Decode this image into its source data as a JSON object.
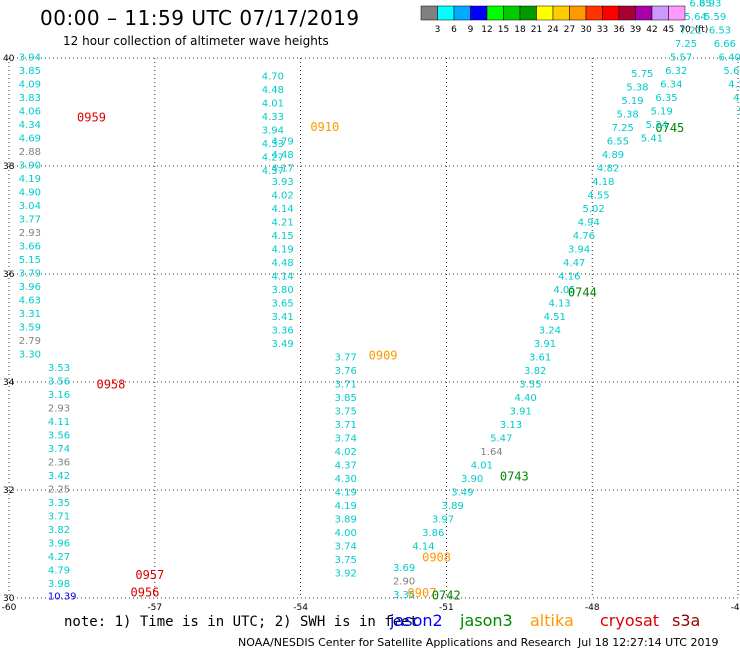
{
  "header": {
    "title": "00:00 – 11:59 UTC 07/17/2019",
    "subtitle": "12 hour collection of altimeter wave heights"
  },
  "legend_scale": {
    "labels": [
      "3",
      "6",
      "9",
      "12",
      "15",
      "18",
      "21",
      "24",
      "27",
      "30",
      "33",
      "36",
      "39",
      "42",
      "45",
      "70",
      "(ft)"
    ],
    "colors": [
      "#808080",
      "#00ffff",
      "#00aaff",
      "#0000ff",
      "#00ff00",
      "#00cc00",
      "#009900",
      "#ffff00",
      "#ffcc00",
      "#ff9900",
      "#ff3300",
      "#ff0000",
      "#aa0033",
      "#aa00aa",
      "#cc99ff",
      "#ff99ff"
    ]
  },
  "footer": {
    "note": "note: 1) Time is in UTC; 2) SWH is in feet",
    "credit": "NOAA/NESDIS Center for Satellite Applications and Research",
    "timestamp": "Jul 18 12:27:14 UTC 2019"
  },
  "satellites": [
    {
      "name": "jason2",
      "color": "#0000ff"
    },
    {
      "name": "jason3",
      "color": "#008800"
    },
    {
      "name": "altika",
      "color": "#ff9900"
    },
    {
      "name": "cryosat",
      "color": "#dd0000"
    },
    {
      "name": "s3a",
      "color": "#990000"
    }
  ],
  "chart_data": {
    "type": "scatter",
    "xlim": [
      -60,
      -45
    ],
    "ylim": [
      30,
      40
    ],
    "xticks": [
      "-60",
      "-57",
      "-54",
      "-51",
      "-48",
      "-45"
    ],
    "yticks": [
      "30",
      "32",
      "34",
      "36",
      "38",
      "40"
    ],
    "grid": true,
    "tracks": [
      {
        "satellite": "cryosat",
        "time": "0959",
        "label_at": [
          -58.6,
          38.82
        ],
        "points": [
          {
            "lon": -59.8,
            "lat": 38.2,
            "v": "2.88",
            "c": "#808080"
          },
          {
            "lon": -59.8,
            "lat": 37.95,
            "v": "3.90"
          },
          {
            "lon": -59.8,
            "lat": 37.7,
            "v": "4.19"
          },
          {
            "lon": -59.8,
            "lat": 37.45,
            "v": "4.90"
          },
          {
            "lon": -59.8,
            "lat": 37.2,
            "v": "3.04"
          },
          {
            "lon": -59.8,
            "lat": 36.95,
            "v": "3.77"
          },
          {
            "lon": -59.8,
            "lat": 36.7,
            "v": "2.93",
            "c": "#808080"
          },
          {
            "lon": -59.8,
            "lat": 36.45,
            "v": "3.66"
          },
          {
            "lon": -59.8,
            "lat": 36.2,
            "v": "5.15"
          },
          {
            "lon": -59.8,
            "lat": 35.95,
            "v": "3.79"
          },
          {
            "lon": -59.8,
            "lat": 35.7,
            "v": "3.96"
          },
          {
            "lon": -59.8,
            "lat": 35.45,
            "v": "4.63"
          },
          {
            "lon": -59.8,
            "lat": 35.2,
            "v": "3.31"
          },
          {
            "lon": -59.8,
            "lat": 34.95,
            "v": "3.59"
          },
          {
            "lon": -59.8,
            "lat": 34.7,
            "v": "2.79",
            "c": "#808080"
          },
          {
            "lon": -59.8,
            "lat": 34.45,
            "v": "3.30"
          }
        ]
      },
      {
        "satellite": "cryosat",
        "time": "0958",
        "label_at": [
          -58.2,
          33.88
        ],
        "points": [
          {
            "lon": -59.2,
            "lat": 34.2,
            "v": "3.53"
          },
          {
            "lon": -59.2,
            "lat": 33.95,
            "v": "3.56"
          },
          {
            "lon": -59.2,
            "lat": 33.7,
            "v": "3.16"
          },
          {
            "lon": -59.2,
            "lat": 33.45,
            "v": "2.93",
            "c": "#808080"
          },
          {
            "lon": -59.2,
            "lat": 33.2,
            "v": "4.11"
          },
          {
            "lon": -59.2,
            "lat": 32.95,
            "v": "3.56"
          },
          {
            "lon": -59.2,
            "lat": 32.7,
            "v": "3.74"
          },
          {
            "lon": -59.2,
            "lat": 32.45,
            "v": "2.36",
            "c": "#808080"
          },
          {
            "lon": -59.2,
            "lat": 32.2,
            "v": "3.42"
          },
          {
            "lon": -59.2,
            "lat": 31.95,
            "v": "2.25",
            "c": "#808080"
          },
          {
            "lon": -59.2,
            "lat": 31.7,
            "v": "3.35"
          },
          {
            "lon": -59.2,
            "lat": 31.45,
            "v": "3.71"
          },
          {
            "lon": -59.2,
            "lat": 31.2,
            "v": "3.82"
          },
          {
            "lon": -59.2,
            "lat": 30.95,
            "v": "3.96"
          },
          {
            "lon": -59.2,
            "lat": 30.7,
            "v": "4.27"
          },
          {
            "lon": -59.2,
            "lat": 30.45,
            "v": "4.79"
          }
        ]
      },
      {
        "satellite": "cryosat",
        "time": "0957",
        "label_at": [
          -57.4,
          30.35
        ],
        "points": [
          {
            "lon": -59.2,
            "lat": 30.2,
            "v": "3.98"
          }
        ]
      },
      {
        "satellite": "cryosat",
        "time": "0956",
        "label_at": [
          -57.5,
          30.03
        ],
        "points": [
          {
            "lon": -59.2,
            "lat": 29.97,
            "v": "10.39",
            "c": "#0000ff"
          }
        ]
      },
      {
        "satellite": "altika",
        "time": "0910",
        "label_at": [
          -53.8,
          38.65
        ],
        "points": [
          {
            "lon": -54.8,
            "lat": 39.6,
            "v": "4.70"
          },
          {
            "lon": -54.8,
            "lat": 39.35,
            "v": "4.48"
          },
          {
            "lon": -54.8,
            "lat": 39.1,
            "v": "4.01"
          },
          {
            "lon": -54.8,
            "lat": 38.85,
            "v": "4.33"
          },
          {
            "lon": -54.8,
            "lat": 38.6,
            "v": "3.94"
          },
          {
            "lon": -54.8,
            "lat": 38.35,
            "v": "4.33"
          },
          {
            "lon": -54.8,
            "lat": 38.1,
            "v": "4.27"
          },
          {
            "lon": -54.8,
            "lat": 37.85,
            "v": "4.37"
          }
        ]
      },
      {
        "satellite": "altika",
        "time": "0909",
        "label_at": [
          -52.6,
          34.42
        ],
        "points": [
          {
            "lon": -54.6,
            "lat": 38.4,
            "v": "4.79"
          },
          {
            "lon": -54.6,
            "lat": 38.15,
            "v": "4.48"
          },
          {
            "lon": -54.6,
            "lat": 37.9,
            "v": "4.17"
          },
          {
            "lon": -54.6,
            "lat": 37.65,
            "v": "3.93"
          },
          {
            "lon": -54.6,
            "lat": 37.4,
            "v": "4.02"
          },
          {
            "lon": -54.6,
            "lat": 37.15,
            "v": "4.14"
          },
          {
            "lon": -54.6,
            "lat": 36.9,
            "v": "4.21"
          },
          {
            "lon": -54.6,
            "lat": 36.65,
            "v": "4.15"
          },
          {
            "lon": -54.6,
            "lat": 36.4,
            "v": "4.19"
          },
          {
            "lon": -54.6,
            "lat": 36.15,
            "v": "4.48"
          },
          {
            "lon": -54.6,
            "lat": 35.9,
            "v": "4.14"
          },
          {
            "lon": -54.6,
            "lat": 35.65,
            "v": "3.80"
          },
          {
            "lon": -54.6,
            "lat": 35.4,
            "v": "3.65"
          },
          {
            "lon": -54.6,
            "lat": 35.15,
            "v": "3.41"
          },
          {
            "lon": -54.6,
            "lat": 34.9,
            "v": "3.36"
          },
          {
            "lon": -54.6,
            "lat": 34.65,
            "v": "3.49"
          }
        ]
      },
      {
        "satellite": "altika",
        "time": "0908",
        "label_at": [
          -51.5,
          30.68
        ],
        "points": [
          {
            "lon": -53.3,
            "lat": 34.4,
            "v": "3.77"
          },
          {
            "lon": -53.3,
            "lat": 34.15,
            "v": "3.76"
          },
          {
            "lon": -53.3,
            "lat": 33.9,
            "v": "3.71"
          },
          {
            "lon": -53.3,
            "lat": 33.65,
            "v": "3.85"
          },
          {
            "lon": -53.3,
            "lat": 33.4,
            "v": "3.75"
          },
          {
            "lon": -53.3,
            "lat": 33.15,
            "v": "3.71"
          },
          {
            "lon": -53.3,
            "lat": 32.9,
            "v": "3.74"
          },
          {
            "lon": -53.3,
            "lat": 32.65,
            "v": "4.02"
          },
          {
            "lon": -53.3,
            "lat": 32.4,
            "v": "4.37"
          },
          {
            "lon": -53.3,
            "lat": 32.15,
            "v": "4.30"
          },
          {
            "lon": -53.3,
            "lat": 31.9,
            "v": "4.19"
          },
          {
            "lon": -53.3,
            "lat": 31.65,
            "v": "4.19"
          },
          {
            "lon": -53.3,
            "lat": 31.4,
            "v": "3.89"
          },
          {
            "lon": -53.3,
            "lat": 31.15,
            "v": "4.00"
          },
          {
            "lon": -53.3,
            "lat": 30.9,
            "v": "3.74"
          },
          {
            "lon": -53.3,
            "lat": 30.65,
            "v": "3.75"
          },
          {
            "lon": -53.3,
            "lat": 30.4,
            "v": "3.92"
          }
        ]
      },
      {
        "satellite": "altika",
        "time": "0907",
        "label_at": [
          -51.8,
          30.02
        ],
        "points": [
          {
            "lon": -52.1,
            "lat": 30.5,
            "v": "3.69"
          },
          {
            "lon": -52.1,
            "lat": 30.25,
            "v": "2.90",
            "c": "#808080"
          },
          {
            "lon": -52.1,
            "lat": 30.0,
            "v": "3.35"
          }
        ]
      },
      {
        "satellite": "jason3",
        "time": "0742",
        "label_at": [
          -51.3,
          29.97
        ],
        "points": [
          {
            "lon": -51.7,
            "lat": 30.9,
            "v": "4.14"
          },
          {
            "lon": -51.5,
            "lat": 31.15,
            "v": "3.86"
          },
          {
            "lon": -51.3,
            "lat": 31.4,
            "v": "3.97"
          },
          {
            "lon": -51.1,
            "lat": 31.65,
            "v": "3.89"
          },
          {
            "lon": -50.9,
            "lat": 31.9,
            "v": "3.49"
          }
        ]
      },
      {
        "satellite": "jason3",
        "time": "0743",
        "label_at": [
          -49.9,
          32.18
        ],
        "points": [
          {
            "lon": -50.7,
            "lat": 32.15,
            "v": "3.90"
          },
          {
            "lon": -50.5,
            "lat": 32.4,
            "v": "4.01"
          },
          {
            "lon": -50.3,
            "lat": 32.65,
            "v": "1.64",
            "c": "#808080"
          },
          {
            "lon": -50.1,
            "lat": 32.9,
            "v": "5.47"
          },
          {
            "lon": -49.9,
            "lat": 33.15,
            "v": "3.13"
          },
          {
            "lon": -49.7,
            "lat": 33.4,
            "v": "3.91"
          },
          {
            "lon": -49.6,
            "lat": 33.65,
            "v": "4.40"
          },
          {
            "lon": -49.5,
            "lat": 33.9,
            "v": "3.55"
          },
          {
            "lon": -49.4,
            "lat": 34.15,
            "v": "3.82"
          },
          {
            "lon": -49.3,
            "lat": 34.4,
            "v": "3.61"
          }
        ]
      },
      {
        "satellite": "jason3",
        "time": "0744",
        "label_at": [
          -48.5,
          35.58
        ],
        "points": [
          {
            "lon": -49.2,
            "lat": 34.65,
            "v": "3.91"
          },
          {
            "lon": -49.1,
            "lat": 34.9,
            "v": "3.24"
          },
          {
            "lon": -49.0,
            "lat": 35.15,
            "v": "4.51"
          },
          {
            "lon": -48.9,
            "lat": 35.4,
            "v": "4.13"
          },
          {
            "lon": -48.8,
            "lat": 35.65,
            "v": "4.05"
          },
          {
            "lon": -48.7,
            "lat": 35.9,
            "v": "4.16"
          },
          {
            "lon": -48.6,
            "lat": 36.15,
            "v": "4.47"
          },
          {
            "lon": -48.5,
            "lat": 36.4,
            "v": "3.94"
          },
          {
            "lon": -48.4,
            "lat": 36.65,
            "v": "4.76"
          },
          {
            "lon": -48.3,
            "lat": 36.9,
            "v": "4.94"
          },
          {
            "lon": -48.2,
            "lat": 37.15,
            "v": "5.02"
          }
        ]
      },
      {
        "satellite": "jason3",
        "time": "0745",
        "label_at": [
          -46.7,
          38.63
        ],
        "points": [
          {
            "lon": -48.1,
            "lat": 37.4,
            "v": "4.55"
          },
          {
            "lon": -48.0,
            "lat": 37.65,
            "v": "4.18"
          },
          {
            "lon": -47.9,
            "lat": 37.9,
            "v": "4.82"
          },
          {
            "lon": -47.8,
            "lat": 38.15,
            "v": "4.89"
          },
          {
            "lon": -47.7,
            "lat": 38.4,
            "v": "6.55"
          },
          {
            "lon": -47.6,
            "lat": 38.65,
            "v": "7.25"
          },
          {
            "lon": -47.5,
            "lat": 38.9,
            "v": "5.38"
          },
          {
            "lon": -47.4,
            "lat": 39.15,
            "v": "5.19"
          },
          {
            "lon": -47.3,
            "lat": 39.4,
            "v": "5.38"
          },
          {
            "lon": -47.2,
            "lat": 39.65,
            "v": "5.75"
          }
        ]
      },
      {
        "satellite": "jason3",
        "time": "",
        "label_at": null,
        "points": [
          {
            "lon": -47.0,
            "lat": 38.45,
            "v": "5.41"
          },
          {
            "lon": -46.9,
            "lat": 38.7,
            "v": "5.24"
          },
          {
            "lon": -46.8,
            "lat": 38.95,
            "v": "5.19"
          },
          {
            "lon": -46.7,
            "lat": 39.2,
            "v": "6.35"
          },
          {
            "lon": -46.6,
            "lat": 39.45,
            "v": "6.34"
          },
          {
            "lon": -46.5,
            "lat": 39.7,
            "v": "6.32"
          },
          {
            "lon": -46.4,
            "lat": 39.95,
            "v": "5.57"
          },
          {
            "lon": -46.3,
            "lat": 40.2,
            "v": "7.25"
          },
          {
            "lon": -46.2,
            "lat": 40.45,
            "v": "7.21"
          },
          {
            "lon": -46.1,
            "lat": 40.7,
            "v": "5.64"
          },
          {
            "lon": -46.0,
            "lat": 40.95,
            "v": "6.85"
          }
        ]
      },
      {
        "satellite": "jason3",
        "time": "",
        "label_at": null,
        "points": [
          {
            "lon": -45.8,
            "lat": 40.95,
            "v": "6.93"
          },
          {
            "lon": -45.7,
            "lat": 40.7,
            "v": "5.59"
          },
          {
            "lon": -45.6,
            "lat": 40.45,
            "v": "6.53"
          },
          {
            "lon": -45.5,
            "lat": 40.2,
            "v": "6.66"
          },
          {
            "lon": -45.4,
            "lat": 39.95,
            "v": "6.40"
          },
          {
            "lon": -45.3,
            "lat": 39.7,
            "v": "5.65"
          },
          {
            "lon": -45.2,
            "lat": 39.45,
            "v": "4.32"
          },
          {
            "lon": -45.1,
            "lat": 39.2,
            "v": "4.5"
          },
          {
            "lon": -45.0,
            "lat": 38.95,
            "v": "5.4"
          },
          {
            "lon": -44.9,
            "lat": 38.7,
            "v": "4.0"
          }
        ]
      },
      {
        "satellite": "cryosat",
        "time": "",
        "label_at": null,
        "points": [
          {
            "lon": -59.8,
            "lat": 38.45,
            "v": "4.69"
          },
          {
            "lon": -59.8,
            "lat": 38.7,
            "v": "4.34"
          },
          {
            "lon": -59.8,
            "lat": 38.95,
            "v": "4.06"
          },
          {
            "lon": -59.8,
            "lat": 39.2,
            "v": "3.83"
          },
          {
            "lon": -59.8,
            "lat": 39.45,
            "v": "4.09"
          },
          {
            "lon": -59.8,
            "lat": 39.7,
            "v": "3.85"
          },
          {
            "lon": -59.8,
            "lat": 39.95,
            "v": "3.94"
          }
        ]
      }
    ]
  }
}
